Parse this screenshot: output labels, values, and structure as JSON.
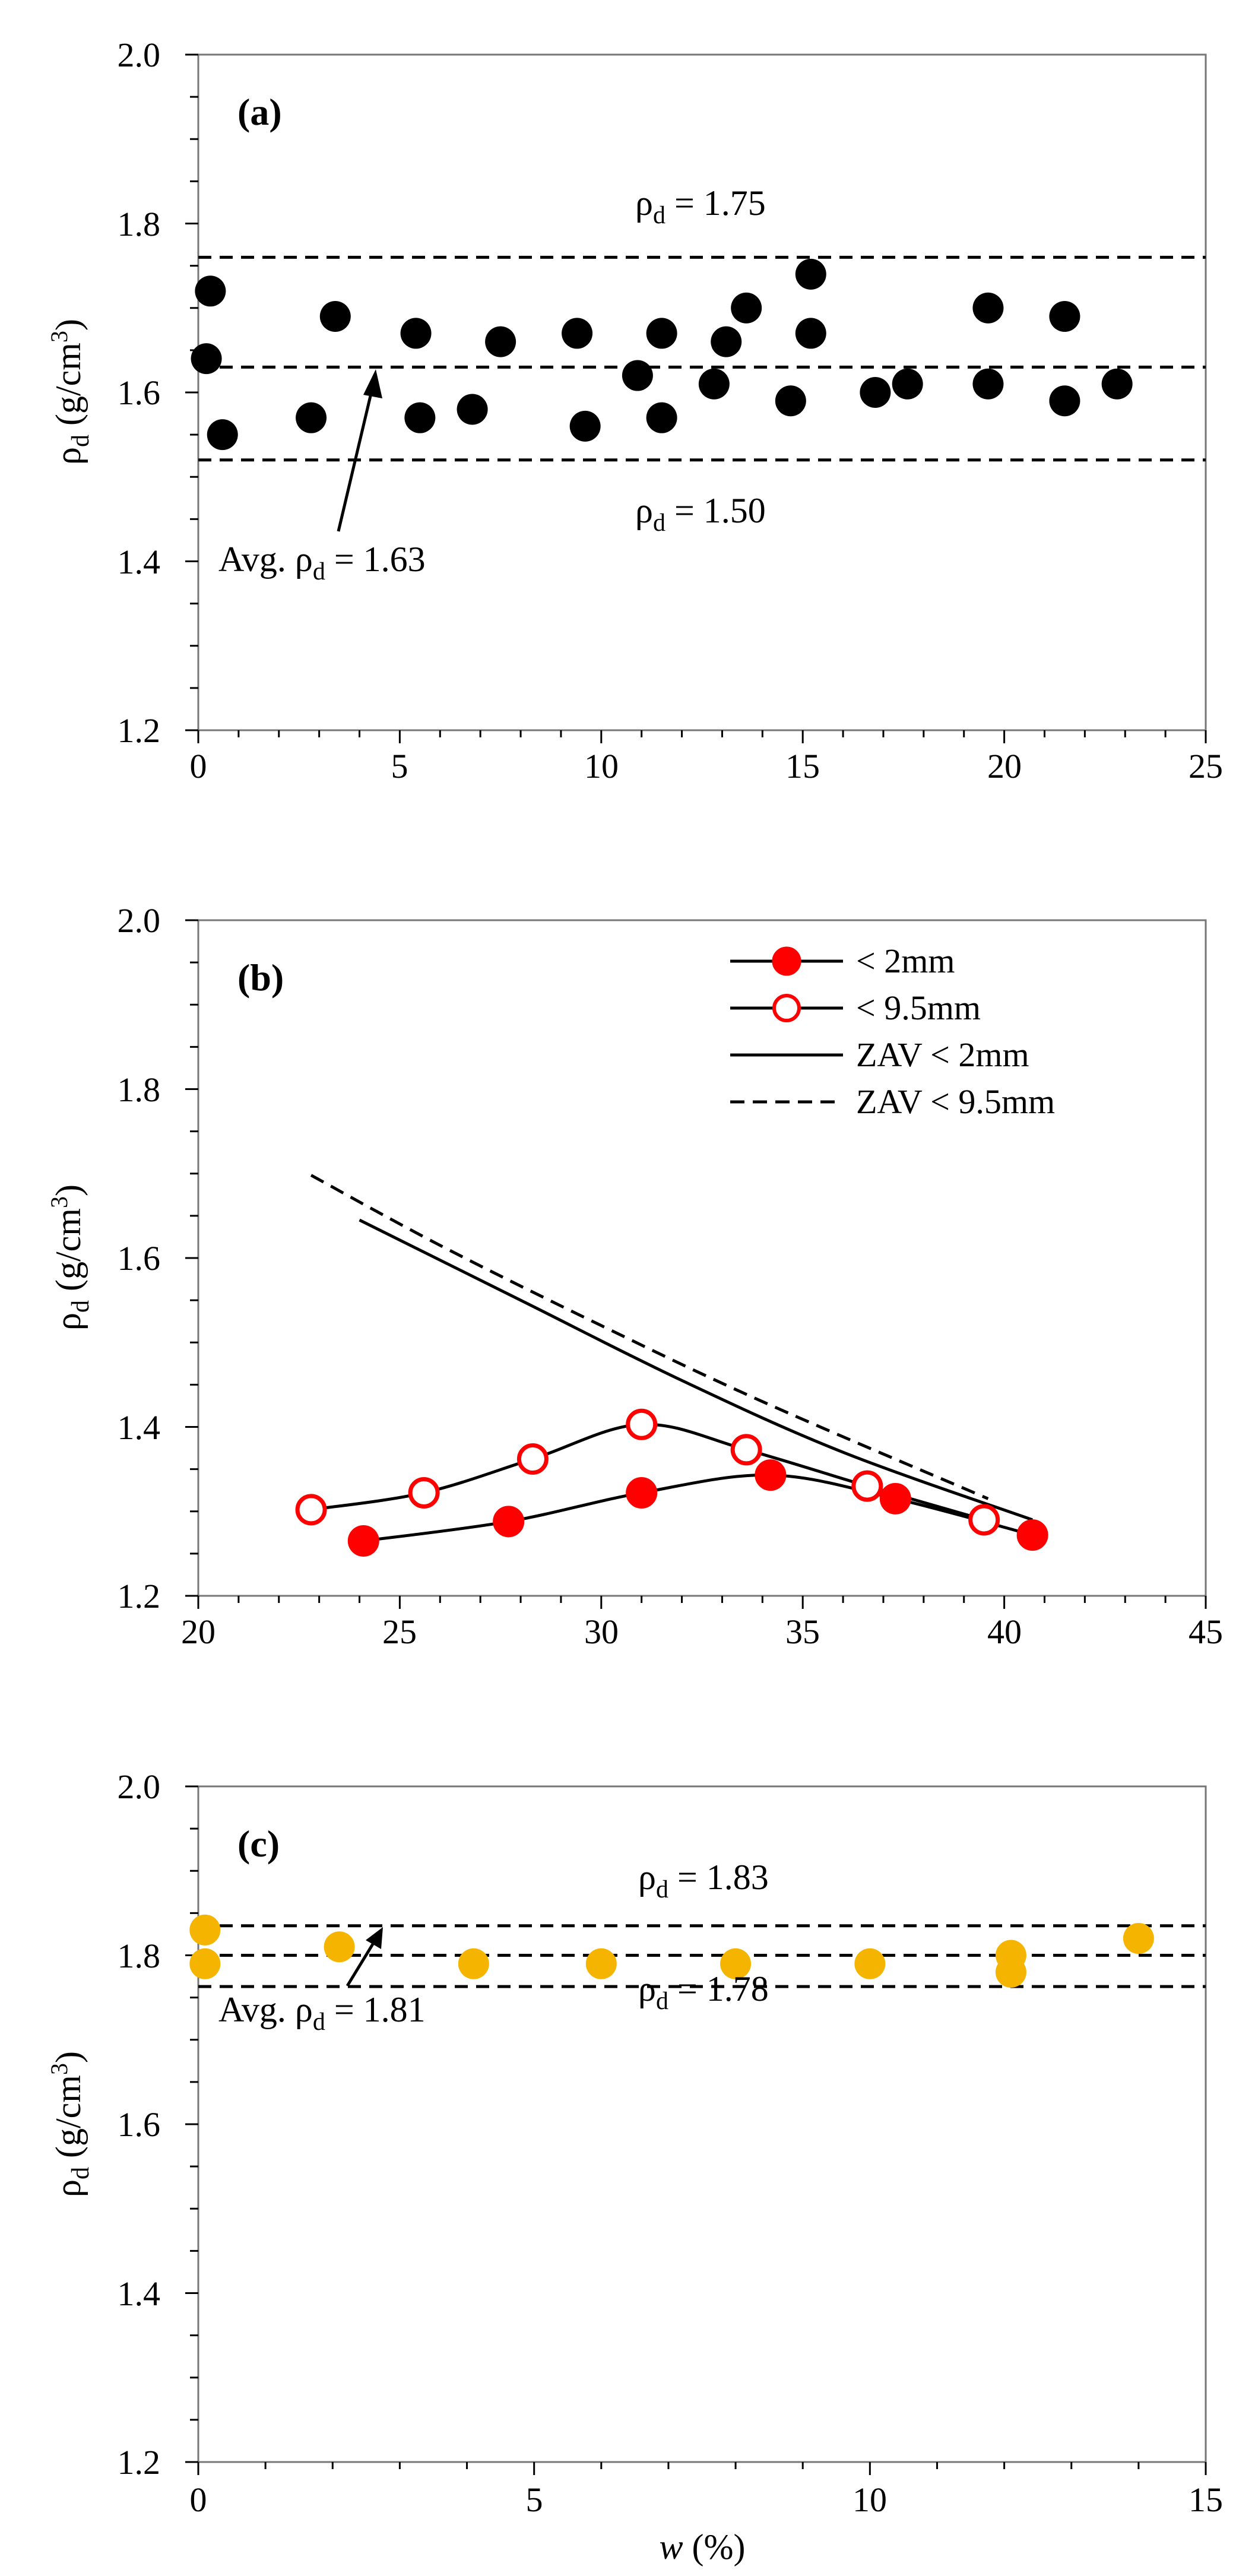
{
  "chart_data": [
    {
      "id": "a",
      "type": "scatter",
      "panel_label": "(a)",
      "xlabel": "",
      "ylabel": "ρd (g/cm3)",
      "xlim": [
        0,
        25
      ],
      "ylim": [
        1.2,
        2.0
      ],
      "x_ticks": [
        "0",
        "5",
        "10",
        "15",
        "20",
        "25"
      ],
      "y_ticks": [
        "1.2",
        "1.4",
        "1.6",
        "1.8",
        "2.0"
      ],
      "marker_color": "#000000",
      "points": [
        {
          "x": 0.3,
          "y": 1.72
        },
        {
          "x": 0.2,
          "y": 1.64
        },
        {
          "x": 0.6,
          "y": 1.55
        },
        {
          "x": 2.8,
          "y": 1.57
        },
        {
          "x": 3.4,
          "y": 1.69
        },
        {
          "x": 5.4,
          "y": 1.67
        },
        {
          "x": 5.5,
          "y": 1.57
        },
        {
          "x": 6.8,
          "y": 1.58
        },
        {
          "x": 7.5,
          "y": 1.66
        },
        {
          "x": 9.4,
          "y": 1.67
        },
        {
          "x": 9.6,
          "y": 1.56
        },
        {
          "x": 10.9,
          "y": 1.62
        },
        {
          "x": 11.5,
          "y": 1.67
        },
        {
          "x": 11.5,
          "y": 1.57
        },
        {
          "x": 12.8,
          "y": 1.61
        },
        {
          "x": 13.1,
          "y": 1.66
        },
        {
          "x": 13.6,
          "y": 1.7
        },
        {
          "x": 14.7,
          "y": 1.59
        },
        {
          "x": 15.2,
          "y": 1.74
        },
        {
          "x": 15.2,
          "y": 1.67
        },
        {
          "x": 16.8,
          "y": 1.6
        },
        {
          "x": 17.6,
          "y": 1.61
        },
        {
          "x": 19.6,
          "y": 1.7
        },
        {
          "x": 19.6,
          "y": 1.61
        },
        {
          "x": 21.5,
          "y": 1.69
        },
        {
          "x": 21.5,
          "y": 1.59
        },
        {
          "x": 22.8,
          "y": 1.61
        }
      ],
      "ref_lines": [
        1.76,
        1.63,
        1.52
      ],
      "annotations": {
        "upper": {
          "text": "ρd = 1.75",
          "sym": "ρ",
          "sub": "d",
          "tail": " = 1.75"
        },
        "lower": {
          "text": "ρd = 1.50",
          "sym": "ρ",
          "sub": "d",
          "tail": " = 1.50"
        },
        "avg": {
          "text": "Avg. ρd = 1.63",
          "pre": "Avg. ",
          "sym": "ρ",
          "sub": "d",
          "tail": " = 1.63"
        }
      }
    },
    {
      "id": "b",
      "type": "line",
      "panel_label": "(b)",
      "xlabel": "",
      "ylabel": "ρd (g/cm3)",
      "xlim": [
        20,
        45
      ],
      "ylim": [
        1.2,
        2.0
      ],
      "x_ticks": [
        "20",
        "25",
        "30",
        "35",
        "40",
        "45"
      ],
      "y_ticks": [
        "1.2",
        "1.4",
        "1.6",
        "1.8",
        "2.0"
      ],
      "accent_color": "#ff0000",
      "series": [
        {
          "name": "< 2mm",
          "marker": "filled",
          "points": [
            {
              "x": 24.1,
              "y": 1.265
            },
            {
              "x": 27.7,
              "y": 1.288
            },
            {
              "x": 31.0,
              "y": 1.322
            },
            {
              "x": 34.2,
              "y": 1.343
            },
            {
              "x": 37.3,
              "y": 1.315
            },
            {
              "x": 40.7,
              "y": 1.272
            }
          ]
        },
        {
          "name": "< 9.5mm",
          "marker": "open",
          "points": [
            {
              "x": 22.8,
              "y": 1.302
            },
            {
              "x": 25.6,
              "y": 1.322
            },
            {
              "x": 28.3,
              "y": 1.362
            },
            {
              "x": 31.0,
              "y": 1.403
            },
            {
              "x": 33.6,
              "y": 1.373
            },
            {
              "x": 36.6,
              "y": 1.33
            },
            {
              "x": 39.5,
              "y": 1.29
            }
          ]
        },
        {
          "name": "ZAV < 2mm",
          "style": "solid",
          "points": [
            {
              "x": 24.0,
              "y": 1.645
            },
            {
              "x": 28.0,
              "y": 1.55
            },
            {
              "x": 32.0,
              "y": 1.455
            },
            {
              "x": 36.0,
              "y": 1.37
            },
            {
              "x": 40.7,
              "y": 1.29
            }
          ]
        },
        {
          "name": "ZAV < 9.5mm",
          "style": "dashed",
          "points": [
            {
              "x": 22.8,
              "y": 1.698
            },
            {
              "x": 26.0,
              "y": 1.615
            },
            {
              "x": 30.0,
              "y": 1.52
            },
            {
              "x": 34.0,
              "y": 1.43
            },
            {
              "x": 39.6,
              "y": 1.315
            }
          ]
        }
      ],
      "legend_position": "top-right"
    },
    {
      "id": "c",
      "type": "scatter",
      "panel_label": "(c)",
      "xlabel": "w (%)",
      "ylabel": "ρd (g/cm3)",
      "xlim": [
        0,
        15
      ],
      "ylim": [
        1.2,
        2.0
      ],
      "x_ticks": [
        "0",
        "5",
        "10",
        "15"
      ],
      "y_ticks": [
        "1.2",
        "1.4",
        "1.6",
        "1.8",
        "2.0"
      ],
      "marker_color": "#f5b400",
      "points": [
        {
          "x": 0.1,
          "y": 1.83
        },
        {
          "x": 0.1,
          "y": 1.79
        },
        {
          "x": 2.1,
          "y": 1.81
        },
        {
          "x": 4.1,
          "y": 1.79
        },
        {
          "x": 6.0,
          "y": 1.79
        },
        {
          "x": 8.0,
          "y": 1.79
        },
        {
          "x": 10.0,
          "y": 1.79
        },
        {
          "x": 12.1,
          "y": 1.8
        },
        {
          "x": 12.1,
          "y": 1.78
        },
        {
          "x": 14.0,
          "y": 1.82
        }
      ],
      "ref_lines": [
        1.835,
        1.8,
        1.763
      ],
      "annotations": {
        "upper": {
          "text": "ρd = 1.83",
          "sym": "ρ",
          "sub": "d",
          "tail": " = 1.83"
        },
        "lower": {
          "text": "ρd = 1.78",
          "sym": "ρ",
          "sub": "d",
          "tail": " = 1.78"
        },
        "avg": {
          "text": "Avg. ρd = 1.81",
          "pre": "Avg. ",
          "sym": "ρ",
          "sub": "d",
          "tail": " = 1.81"
        }
      }
    }
  ],
  "ylabel_parts": {
    "sym": "ρ",
    "sub": "d",
    "mid": " (g/cm",
    "sup": "3",
    "end": ")"
  },
  "xlabel_parts": {
    "var": "w",
    "unit": " (%)"
  }
}
